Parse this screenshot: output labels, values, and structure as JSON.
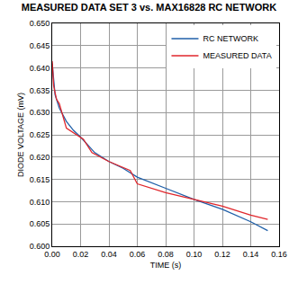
{
  "chart_data": {
    "type": "line",
    "title": "MEASURED DATA SET 3 vs. MAX16828 RC NETWORK",
    "x_label": "TIME (s)",
    "y_label": "DIODE VOLTAGE (mV)",
    "series": [
      {
        "name": "RC NETWORK",
        "color": "#1f5fa8",
        "x": [
          0,
          0.002,
          0.005,
          0.01,
          0.015,
          0.02,
          0.03,
          0.04,
          0.05,
          0.06,
          0.08,
          0.1,
          0.12,
          0.14,
          0.152
        ],
        "values": [
          0.641,
          0.634,
          0.631,
          0.628,
          0.626,
          0.6245,
          0.621,
          0.619,
          0.6175,
          0.6155,
          0.613,
          0.6105,
          0.6083,
          0.6055,
          0.6035
        ]
      },
      {
        "name": "MEASURED DATA",
        "color": "#e0262b",
        "x": [
          0,
          0.001,
          0.003,
          0.005,
          0.01,
          0.015,
          0.02,
          0.022,
          0.028,
          0.04,
          0.055,
          0.06,
          0.08,
          0.1,
          0.12,
          0.14,
          0.152
        ],
        "values": [
          0.6415,
          0.636,
          0.633,
          0.632,
          0.6265,
          0.6255,
          0.6245,
          0.624,
          0.621,
          0.619,
          0.617,
          0.614,
          0.612,
          0.6105,
          0.609,
          0.607,
          0.606
        ]
      }
    ],
    "xlim": [
      0,
      0.16
    ],
    "xticks": [
      {
        "value": 0,
        "label": "0.00"
      },
      0.02,
      0.04,
      0.06,
      0.08,
      {
        "value": 0.1,
        "label": "0.10"
      },
      0.12,
      0.14,
      0.16
    ],
    "ylim": [
      0.6,
      0.65
    ],
    "yticks": [
      {
        "value": 0.6,
        "label": "0.600"
      },
      0.605,
      {
        "value": 0.61,
        "label": "0.610"
      },
      0.615,
      {
        "value": 0.62,
        "label": "0.620"
      },
      0.625,
      {
        "value": 0.63,
        "label": "0.630"
      },
      0.635,
      {
        "value": 0.64,
        "label": "0.640"
      },
      0.645,
      {
        "value": 0.65,
        "label": "0.650"
      }
    ],
    "grid": true,
    "legend": "top-right"
  }
}
